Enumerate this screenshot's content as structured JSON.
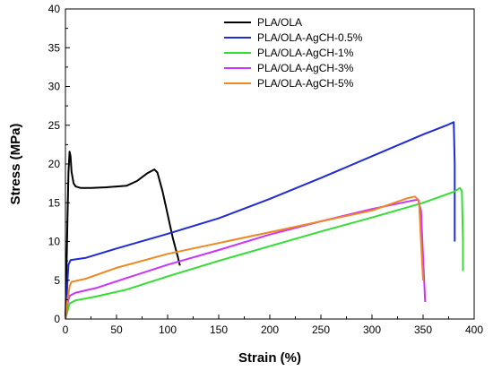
{
  "chart_data": {
    "type": "line",
    "title": "",
    "xlabel": "Strain (%)",
    "ylabel": "Stress (MPa)",
    "xlim": [
      0,
      400
    ],
    "ylim": [
      0,
      40
    ],
    "xticks": [
      0,
      50,
      100,
      150,
      200,
      250,
      300,
      350,
      400
    ],
    "yticks": [
      0,
      5,
      10,
      15,
      20,
      25,
      30,
      35,
      40
    ],
    "grid": false,
    "legend_position": "top-center",
    "series": [
      {
        "name": "PLA/OLA",
        "color": "#000000",
        "points": [
          [
            0,
            0
          ],
          [
            1,
            6
          ],
          [
            2,
            13
          ],
          [
            3,
            19
          ],
          [
            4,
            21.6
          ],
          [
            5,
            21
          ],
          [
            6,
            19
          ],
          [
            8,
            17.5
          ],
          [
            10,
            17.1
          ],
          [
            15,
            16.9
          ],
          [
            25,
            16.9
          ],
          [
            40,
            17.0
          ],
          [
            50,
            17.1
          ],
          [
            60,
            17.2
          ],
          [
            70,
            17.8
          ],
          [
            80,
            18.8
          ],
          [
            87,
            19.3
          ],
          [
            90,
            18.9
          ],
          [
            95,
            16.5
          ],
          [
            100,
            13.5
          ],
          [
            105,
            10.5
          ],
          [
            110,
            8
          ],
          [
            112,
            6.9
          ]
        ]
      },
      {
        "name": "PLA/OLA-AgCH-0.5%",
        "color": "#1f2bd6",
        "points": [
          [
            0,
            0
          ],
          [
            1,
            2
          ],
          [
            2,
            5
          ],
          [
            3,
            7
          ],
          [
            5,
            7.6
          ],
          [
            10,
            7.7
          ],
          [
            20,
            7.9
          ],
          [
            50,
            9.1
          ],
          [
            100,
            11
          ],
          [
            150,
            13
          ],
          [
            200,
            15.5
          ],
          [
            250,
            18.2
          ],
          [
            300,
            21
          ],
          [
            350,
            23.8
          ],
          [
            375,
            25.1
          ],
          [
            380,
            25.4
          ],
          [
            381,
            20
          ],
          [
            381,
            10
          ]
        ]
      },
      {
        "name": "PLA/OLA-AgCH-1%",
        "color": "#33dd33",
        "points": [
          [
            0,
            0
          ],
          [
            2,
            1
          ],
          [
            4,
            2
          ],
          [
            10,
            2.4
          ],
          [
            30,
            2.9
          ],
          [
            60,
            3.8
          ],
          [
            100,
            5.5
          ],
          [
            150,
            7.5
          ],
          [
            200,
            9.4
          ],
          [
            250,
            11.3
          ],
          [
            300,
            13.1
          ],
          [
            350,
            15
          ],
          [
            380,
            16.4
          ],
          [
            386,
            16.9
          ],
          [
            388,
            16.5
          ],
          [
            389,
            10
          ],
          [
            389,
            6.2
          ]
        ]
      },
      {
        "name": "PLA/OLA-AgCH-3%",
        "color": "#cc33ff",
        "points": [
          [
            0,
            0
          ],
          [
            2,
            2
          ],
          [
            4,
            3
          ],
          [
            10,
            3.4
          ],
          [
            30,
            4
          ],
          [
            60,
            5.3
          ],
          [
            100,
            7
          ],
          [
            150,
            8.9
          ],
          [
            200,
            10.9
          ],
          [
            250,
            12.6
          ],
          [
            300,
            14.2
          ],
          [
            340,
            15.3
          ],
          [
            345,
            15.4
          ],
          [
            348,
            14
          ],
          [
            350,
            8
          ],
          [
            352,
            2.2
          ]
        ]
      },
      {
        "name": "PLA/OLA-AgCH-5%",
        "color": "#ee8822",
        "points": [
          [
            0,
            0
          ],
          [
            2,
            2.5
          ],
          [
            4,
            4.2
          ],
          [
            6,
            4.8
          ],
          [
            20,
            5.2
          ],
          [
            50,
            6.6
          ],
          [
            100,
            8.4
          ],
          [
            150,
            9.8
          ],
          [
            200,
            11.2
          ],
          [
            250,
            12.6
          ],
          [
            300,
            14
          ],
          [
            335,
            15.6
          ],
          [
            342,
            15.8
          ],
          [
            346,
            15.3
          ],
          [
            348,
            10
          ],
          [
            350,
            5
          ]
        ]
      }
    ]
  }
}
